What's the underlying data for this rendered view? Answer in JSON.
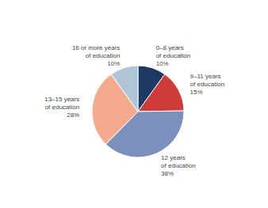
{
  "chart_data": {
    "type": "pie",
    "categories": [
      "0–8 years\nof education",
      "9–11 years\nof education",
      "12 years\nof education",
      "13–15 years\nof education",
      "16 or more years\nof education"
    ],
    "values": [
      10,
      15,
      38,
      28,
      10
    ],
    "value_labels": [
      "10%",
      "15%",
      "38%",
      "28%",
      "10%"
    ],
    "data_labels": true,
    "colors": [
      "#1f3864",
      "#cd3b3b",
      "#7b90bc",
      "#f5a98e",
      "#b0c4d8"
    ]
  }
}
